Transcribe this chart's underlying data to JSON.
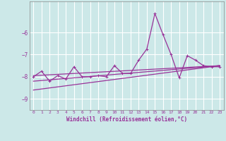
{
  "title": "",
  "xlabel": "Windchill (Refroidissement éolien,°C)",
  "ylabel": "",
  "background_color": "#cce8e8",
  "grid_color": "#ffffff",
  "line_color": "#993399",
  "xlim": [
    -0.5,
    23.5
  ],
  "ylim": [
    -9.5,
    -4.6
  ],
  "yticks": [
    -9,
    -8,
    -7,
    -6
  ],
  "xticks": [
    0,
    1,
    2,
    3,
    4,
    5,
    6,
    7,
    8,
    9,
    10,
    11,
    12,
    13,
    14,
    15,
    16,
    17,
    18,
    19,
    20,
    21,
    22,
    23
  ],
  "series": [
    [
      0,
      -8.0
    ],
    [
      1,
      -7.75
    ],
    [
      2,
      -8.2
    ],
    [
      3,
      -7.95
    ],
    [
      4,
      -8.1
    ],
    [
      5,
      -7.55
    ],
    [
      6,
      -8.0
    ],
    [
      7,
      -8.0
    ],
    [
      8,
      -7.95
    ],
    [
      9,
      -8.0
    ],
    [
      10,
      -7.5
    ],
    [
      11,
      -7.85
    ],
    [
      12,
      -7.85
    ],
    [
      13,
      -7.25
    ],
    [
      14,
      -6.75
    ],
    [
      15,
      -5.15
    ],
    [
      16,
      -6.1
    ],
    [
      17,
      -7.0
    ],
    [
      18,
      -8.05
    ],
    [
      19,
      -7.05
    ],
    [
      20,
      -7.25
    ],
    [
      21,
      -7.5
    ],
    [
      22,
      -7.55
    ],
    [
      23,
      -7.55
    ]
  ],
  "line2": [
    [
      0,
      -7.95
    ],
    [
      23,
      -7.5
    ]
  ],
  "line3": [
    [
      0,
      -8.2
    ],
    [
      23,
      -7.5
    ]
  ],
  "line4": [
    [
      0,
      -8.6
    ],
    [
      23,
      -7.5
    ]
  ]
}
